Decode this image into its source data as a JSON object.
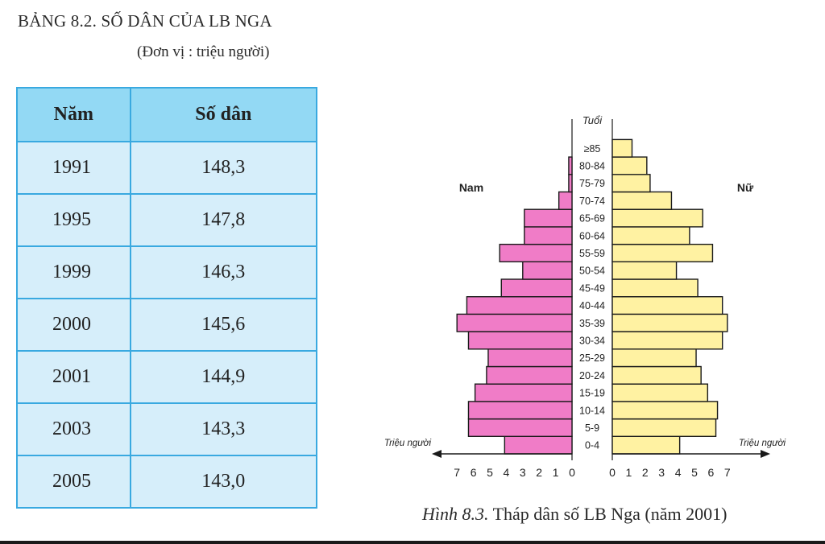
{
  "document": {
    "title": "BẢNG 8.2. SỐ DÂN CỦA LB NGA",
    "unit": "(Đơn vị : triệu người)"
  },
  "table": {
    "headers": [
      "Năm",
      "Số dân"
    ],
    "rows": [
      [
        "1991",
        "148,3"
      ],
      [
        "1995",
        "147,8"
      ],
      [
        "1999",
        "146,3"
      ],
      [
        "2000",
        "145,6"
      ],
      [
        "2001",
        "144,9"
      ],
      [
        "2003",
        "143,3"
      ],
      [
        "2005",
        "143,0"
      ]
    ]
  },
  "chart_data": {
    "type": "bar",
    "subtype": "population-pyramid",
    "age_axis_label": "Tuổi",
    "left_label": "Nam",
    "right_label": "Nữ",
    "x_unit_label_left": "Triệu người",
    "x_unit_label_right": "Triệu người",
    "categories": [
      "0-4",
      "5-9",
      "10-14",
      "15-19",
      "20-24",
      "25-29",
      "30-34",
      "35-39",
      "40-44",
      "45-49",
      "50-54",
      "55-59",
      "60-64",
      "65-69",
      "70-74",
      "75-79",
      "80-84",
      "≥85"
    ],
    "series": [
      {
        "name": "Nam",
        "values": [
          4.1,
          6.3,
          6.3,
          5.9,
          5.2,
          5.1,
          6.3,
          7.0,
          6.4,
          4.3,
          3.0,
          4.4,
          2.9,
          2.9,
          0.8,
          0.2,
          0.2,
          0.0
        ]
      },
      {
        "name": "Nữ",
        "values": [
          4.1,
          6.3,
          6.4,
          5.8,
          5.4,
          5.1,
          6.7,
          7.0,
          6.7,
          5.2,
          3.9,
          6.1,
          4.7,
          5.5,
          3.6,
          2.3,
          2.1,
          1.2
        ]
      }
    ],
    "xlim": [
      0,
      7
    ],
    "left_ticks": [
      "7",
      "6",
      "5",
      "4",
      "3",
      "2",
      "1",
      "0"
    ],
    "right_ticks": [
      "0",
      "1",
      "2",
      "3",
      "4",
      "5",
      "6",
      "7"
    ],
    "colors": {
      "male": "#f07cc7",
      "female": "#fff2a2",
      "outline": "#1a1a1a"
    }
  },
  "caption": {
    "figure": "Hình 8.3.",
    "text": " Tháp dân số LB Nga (năm 2001)"
  }
}
